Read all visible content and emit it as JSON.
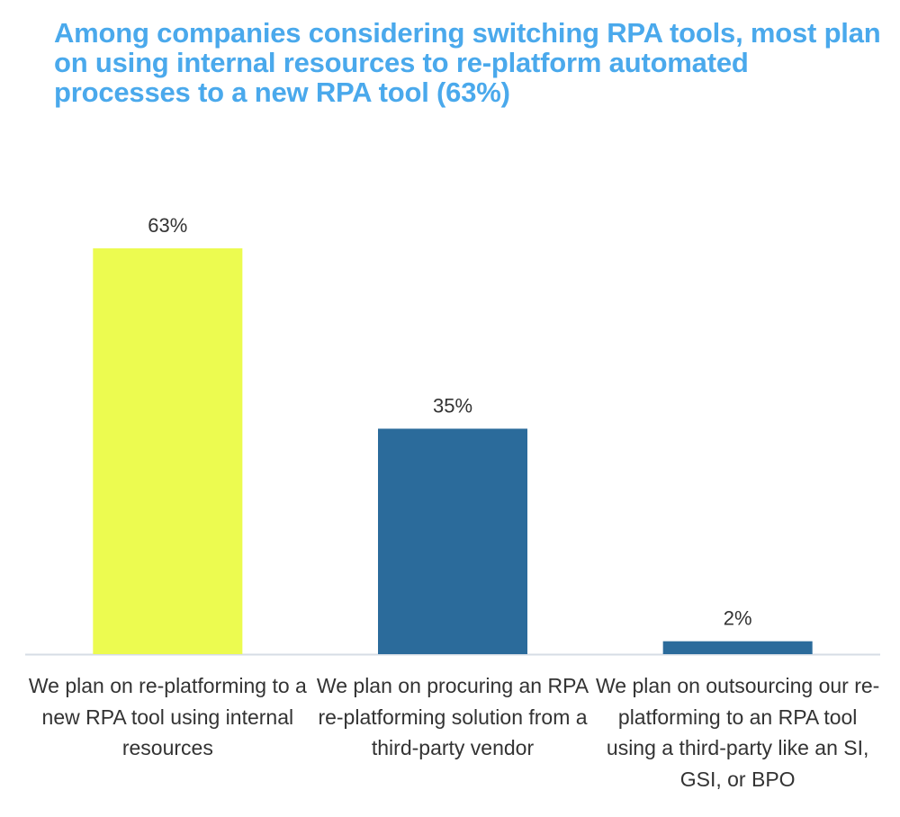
{
  "chart_data": {
    "type": "bar",
    "title": "Among companies considering switching RPA tools, most plan on using internal resources to re-platform automated processes to a new RPA tool (63%)",
    "categories": [
      "We plan on re-platforming to a new RPA tool using internal resources",
      "We plan on procuring an RPA re-platforming solution from a third-party vendor",
      "We plan on outsourcing our re-platforming to an RPA tool using a third-party like an SI, GSI, or BPO"
    ],
    "values": [
      63,
      35,
      2
    ],
    "data_labels": [
      "63%",
      "35%",
      "2%"
    ],
    "colors": [
      "#ecfb50",
      "#2b6b9b",
      "#2b6b9b"
    ],
    "title_color": "#4aa9ec",
    "xlabel": "",
    "ylabel": "",
    "ylim": [
      0,
      63
    ],
    "grid": false,
    "y_axis_visible": false
  }
}
